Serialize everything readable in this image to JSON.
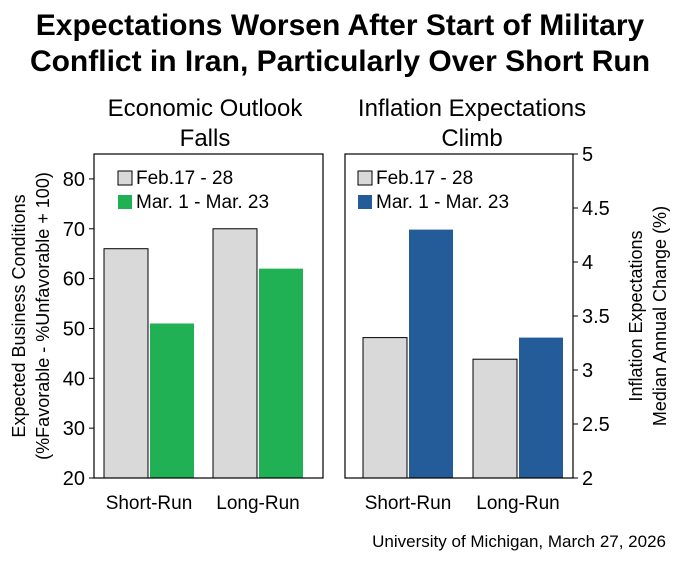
{
  "title": {
    "line1": "Expectations Worsen After Start of Military",
    "line2": "Conflict in Iran, Particularly Over Short Run"
  },
  "source": "University of Michigan, March 27, 2026",
  "chart_data": [
    {
      "type": "bar",
      "title_lines": [
        "Economic Outlook",
        "Falls"
      ],
      "categories": [
        "Short-Run",
        "Long-Run"
      ],
      "series": [
        {
          "name": "Feb.17 - 28",
          "values": [
            66,
            70
          ],
          "color": "#d9d9d9"
        },
        {
          "name": "Mar. 1 - Mar. 23",
          "values": [
            51,
            62
          ],
          "color": "#1fb154"
        }
      ],
      "ylabel_lines": [
        "Expected Business Conditions",
        "(%Favorable - %Unfavorable + 100)"
      ],
      "ylim": [
        20,
        85
      ],
      "yticks": [
        20,
        30,
        40,
        50,
        60,
        70,
        80
      ],
      "ytick_labels": [
        "20",
        "30",
        "40",
        "50",
        "60",
        "70",
        "80"
      ],
      "y_axis_side": "left",
      "legend": "top-left",
      "grid": false
    },
    {
      "type": "bar",
      "title_lines": [
        "Inflation Expectations",
        "Climb"
      ],
      "categories": [
        "Short-Run",
        "Long-Run"
      ],
      "series": [
        {
          "name": "Feb.17 - 28",
          "values": [
            3.3,
            3.1
          ],
          "color": "#d9d9d9"
        },
        {
          "name": "Mar. 1 - Mar. 23",
          "values": [
            4.3,
            3.3
          ],
          "color": "#245c99"
        }
      ],
      "ylabel_lines": [
        "Inflation Expectations",
        "Median Annual Change (%)"
      ],
      "ylim": [
        2,
        5
      ],
      "yticks": [
        2,
        2.5,
        3,
        3.5,
        4,
        4.5,
        5
      ],
      "ytick_labels": [
        "2",
        "2.5",
        "3",
        "3.5",
        "4",
        "4.5",
        "5"
      ],
      "y_axis_side": "right",
      "legend": "top-left",
      "grid": false
    }
  ]
}
